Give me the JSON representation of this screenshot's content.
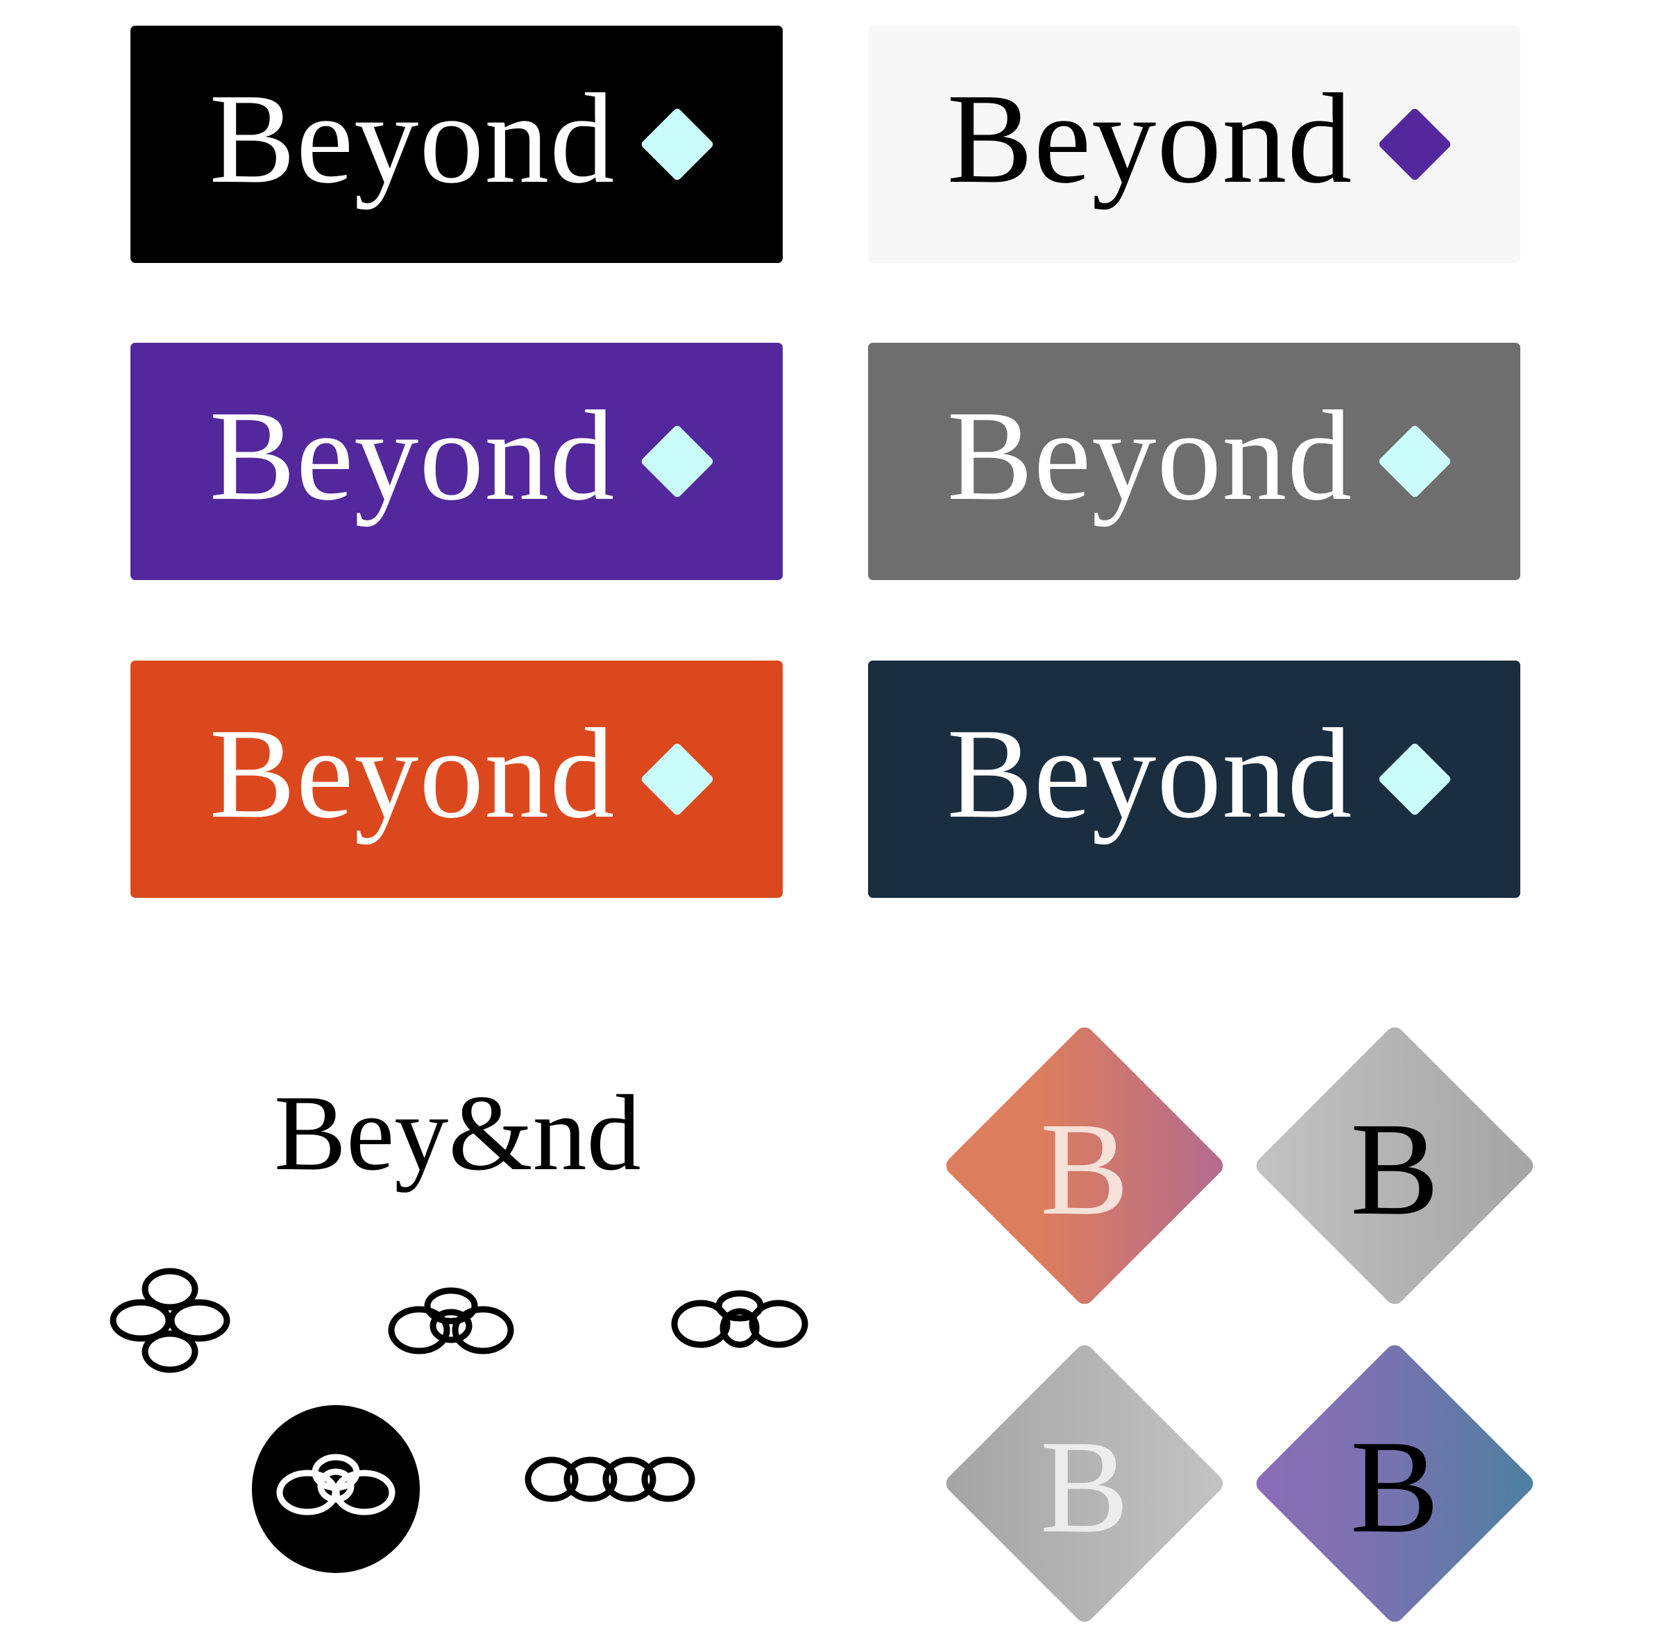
{
  "wordmark": "Beyond",
  "loop_wordmark": "Bey&nd",
  "monogram": "B",
  "colors": {
    "black": "#000000",
    "light": "#f7f7f7",
    "purple": "#52289c",
    "gray": "#6e6e6e",
    "orange": "#dc481e",
    "navy": "#1a2e40",
    "cyan": "#cbfcfc",
    "white": "#ffffff"
  },
  "icons": [
    "diamond-icon",
    "loop-mark-icon",
    "monogram-tile-icon"
  ]
}
